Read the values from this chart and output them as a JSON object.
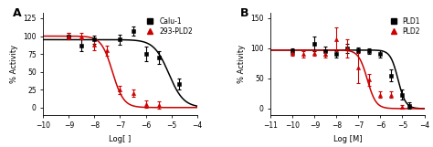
{
  "panel_A": {
    "title": "A",
    "xlabel": "Log[ ]",
    "ylabel": "% Activity",
    "xlim": [
      -10,
      -4
    ],
    "ylim": [
      -10,
      132
    ],
    "yticks": [
      0,
      25,
      50,
      75,
      100,
      125
    ],
    "xticks": [
      -10,
      -9,
      -8,
      -7,
      -6,
      -5,
      -4
    ],
    "series": [
      {
        "label": "Calu-1",
        "color": "#000000",
        "marker": "s",
        "x": [
          -9.0,
          -8.5,
          -8.0,
          -7.0,
          -6.5,
          -6.0,
          -5.5,
          -4.7
        ],
        "y": [
          100,
          87,
          95,
          95,
          107,
          75,
          70,
          33
        ],
        "yerr": [
          5,
          8,
          6,
          7,
          6,
          10,
          9,
          8
        ],
        "ic50": -5.1,
        "hill": 1.5,
        "top": 95,
        "bottom": 0
      },
      {
        "label": "293-PLD2",
        "color": "#cc0000",
        "marker": "^",
        "x": [
          -9.0,
          -8.5,
          -8.0,
          -7.5,
          -7.0,
          -6.5,
          -6.0,
          -5.5
        ],
        "y": [
          100,
          100,
          88,
          80,
          25,
          20,
          5,
          3
        ],
        "yerr": [
          5,
          5,
          8,
          7,
          6,
          5,
          5,
          5
        ],
        "ic50": -7.3,
        "hill": 2.0,
        "top": 100,
        "bottom": 0
      }
    ]
  },
  "panel_B": {
    "title": "B",
    "xlabel": "Log [M]",
    "ylabel": "% Activity",
    "xlim": [
      -11,
      -4
    ],
    "ylim": [
      -10,
      158
    ],
    "yticks": [
      0,
      50,
      100,
      150
    ],
    "xticks": [
      -11,
      -10,
      -9,
      -8,
      -7,
      -6,
      -5,
      -4
    ],
    "series": [
      {
        "label": "PLD1",
        "color": "#000000",
        "marker": "s",
        "x": [
          -10.0,
          -9.0,
          -8.5,
          -8.0,
          -7.5,
          -7.0,
          -6.5,
          -6.0,
          -5.5,
          -5.0,
          -4.7
        ],
        "y": [
          95,
          107,
          95,
          90,
          100,
          97,
          95,
          90,
          55,
          23,
          5
        ],
        "yerr": [
          5,
          12,
          8,
          6,
          8,
          5,
          5,
          6,
          10,
          8,
          5
        ],
        "ic50": -5.2,
        "hill": 2.5,
        "top": 97,
        "bottom": 0
      },
      {
        "label": "PLD2",
        "color": "#cc0000",
        "marker": "^",
        "x": [
          -10.0,
          -9.5,
          -9.0,
          -8.5,
          -8.0,
          -7.5,
          -7.0,
          -6.5,
          -6.0,
          -5.5,
          -5.0
        ],
        "y": [
          92,
          90,
          92,
          90,
          115,
          100,
          68,
          48,
          23,
          23,
          3
        ],
        "yerr": [
          5,
          5,
          5,
          5,
          20,
          15,
          25,
          10,
          5,
          5,
          3
        ],
        "ic50": -6.6,
        "hill": 2.2,
        "top": 97,
        "bottom": 0
      }
    ]
  }
}
